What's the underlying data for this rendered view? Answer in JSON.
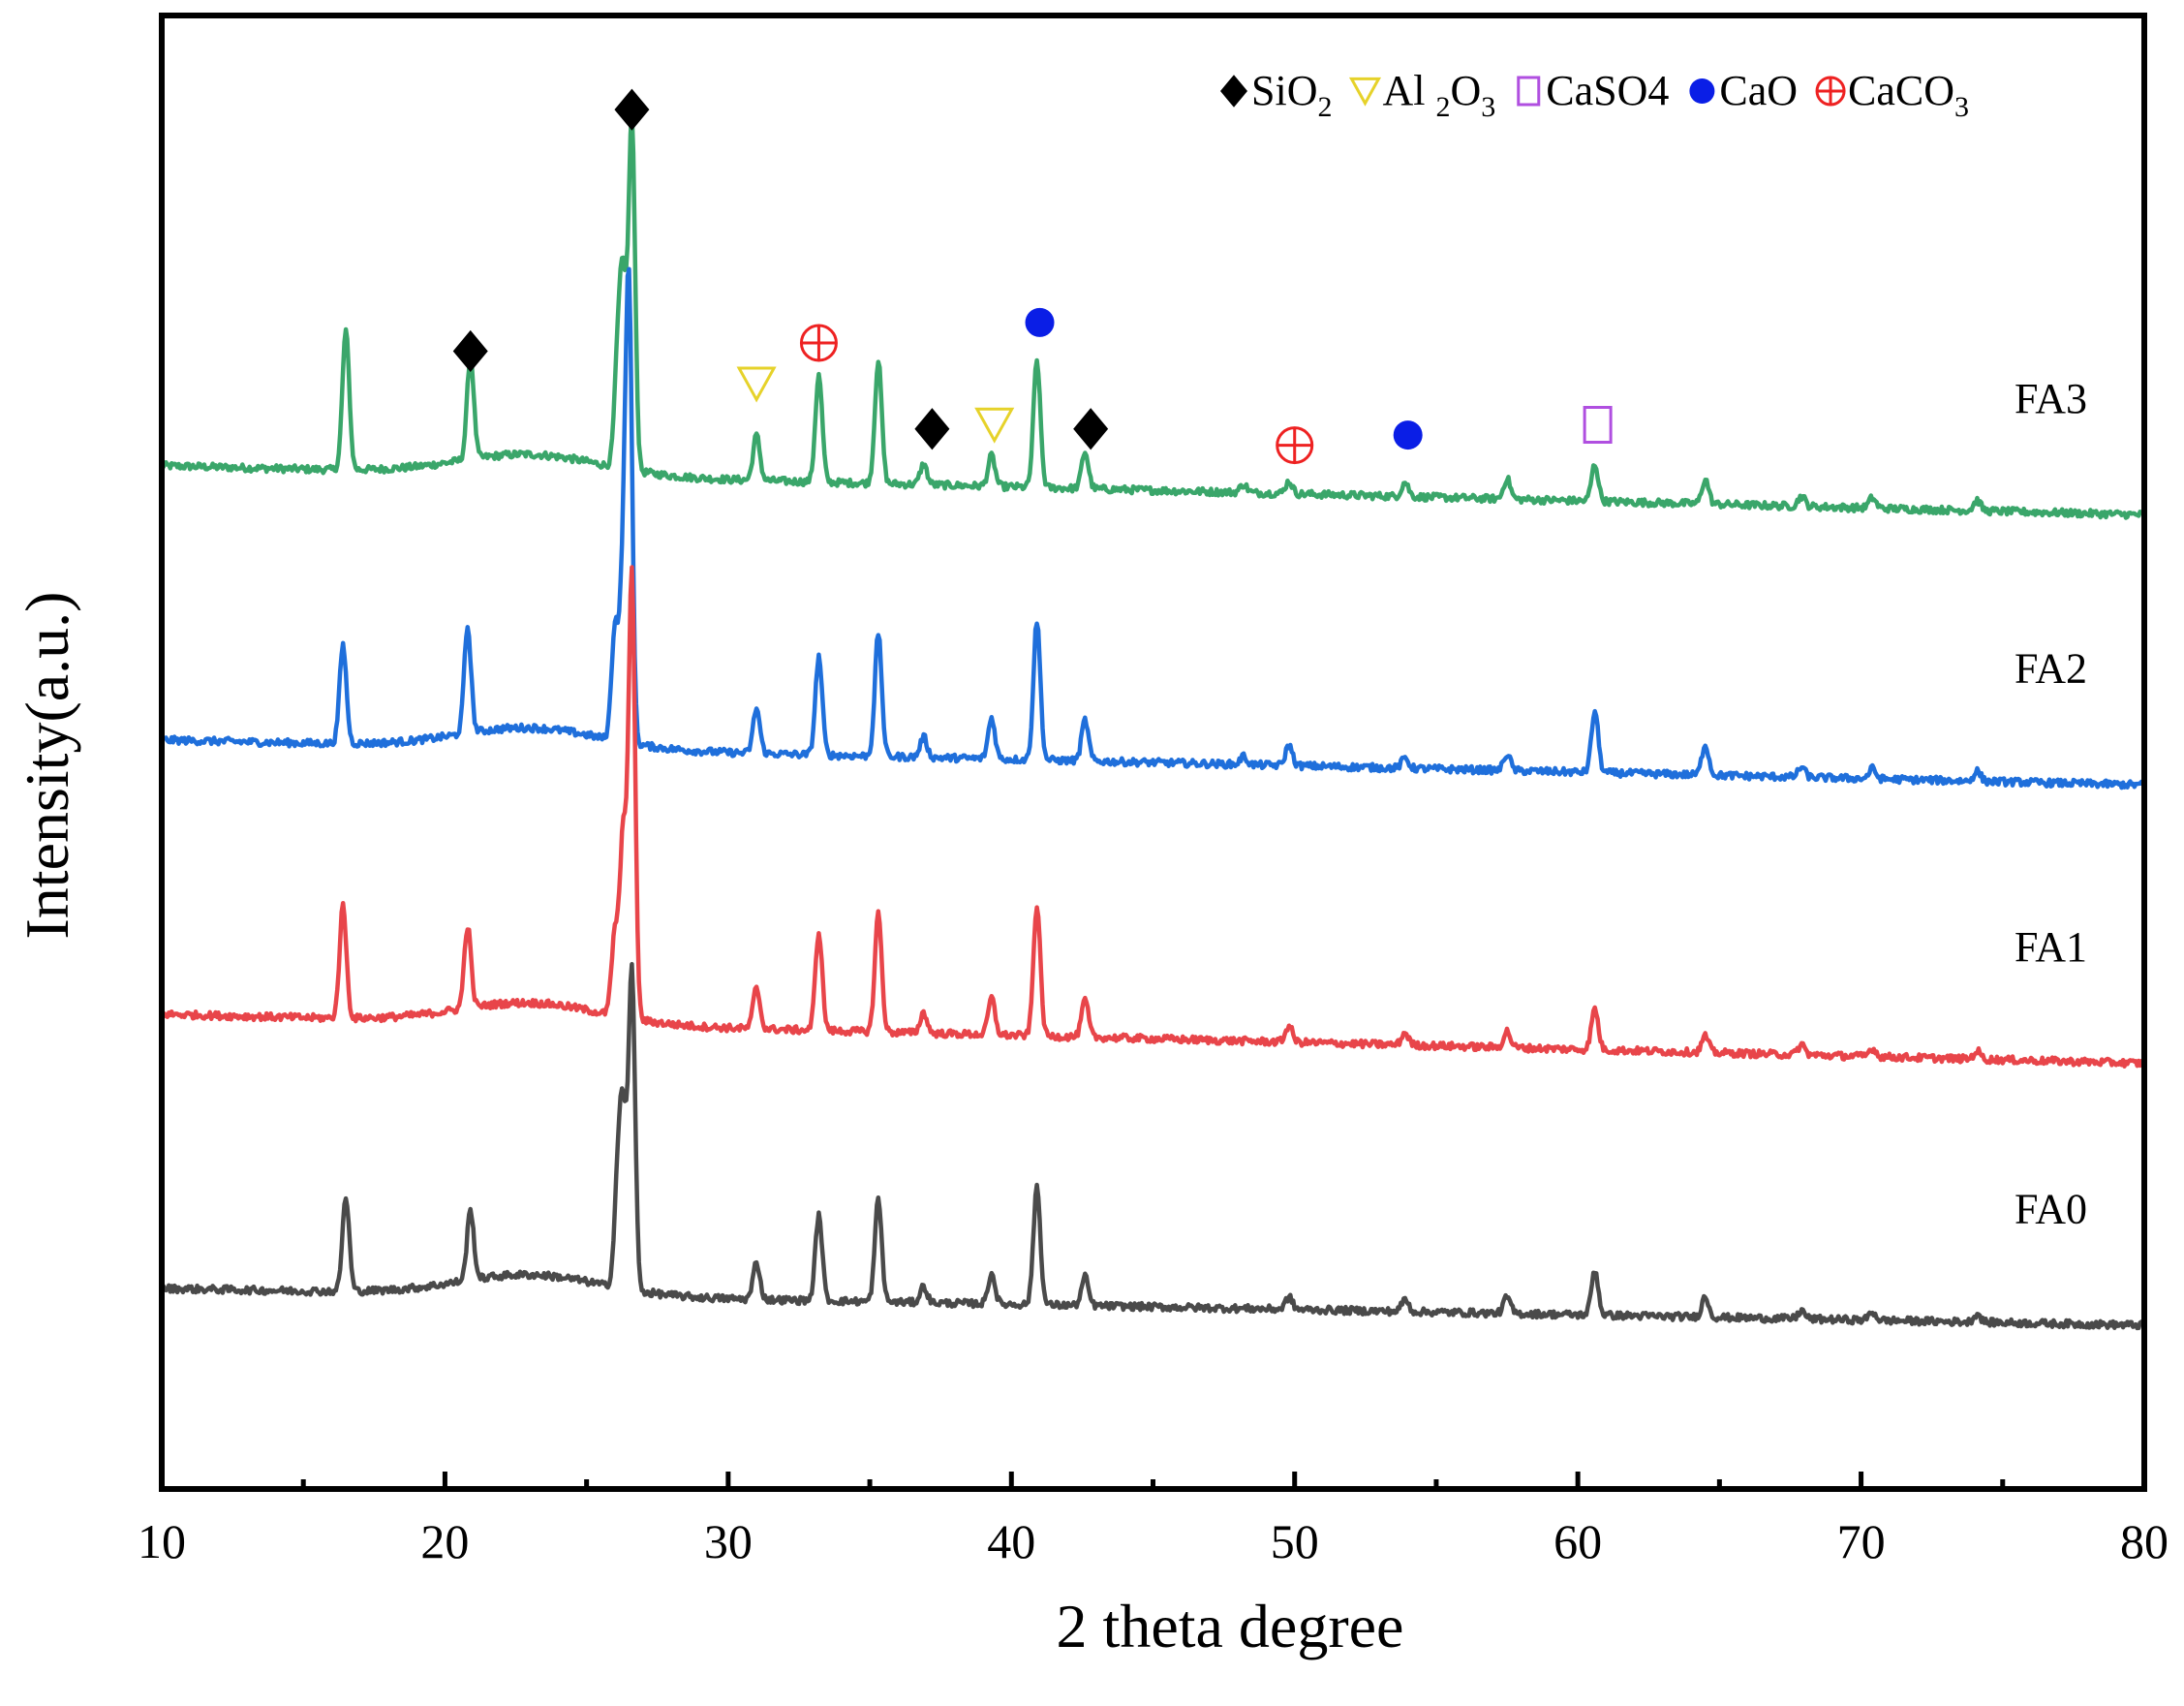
{
  "chart_data": {
    "type": "line",
    "title": "",
    "xlabel": "2 theta degree",
    "ylabel": "Intensity(a.u.)",
    "xlim": [
      10,
      80
    ],
    "x_ticks": [
      10,
      20,
      30,
      40,
      50,
      60,
      70,
      80
    ],
    "y_ticks": [],
    "grid": false,
    "legend_position": "top-right",
    "legend": [
      {
        "symbol": "◆",
        "text": "SiO",
        "sub": "2",
        "color": "#000000"
      },
      {
        "symbol": "▽",
        "text": "Al ",
        "sub": "2",
        "text2": "O",
        "sub2": "3",
        "color": "#e6d22a"
      },
      {
        "symbol": "□",
        "text": "CaSO4",
        "color": "#b04fe0"
      },
      {
        "symbol": "●",
        "text": "CaO",
        "color": "#0a1ee6"
      },
      {
        "symbol": "⊕",
        "text": "CaCO",
        "sub": "3",
        "color": "#ee2222"
      }
    ],
    "series": [
      {
        "name": "FA3",
        "color": "#3aa66a",
        "baseline_start": 5.0,
        "baseline_end": 4.76,
        "peaks": [
          [
            16.5,
            0.68
          ],
          [
            20.9,
            0.5
          ],
          [
            26.1,
            0.5
          ],
          [
            26.3,
            0.85
          ],
          [
            26.6,
            1.7
          ],
          [
            31.0,
            0.22
          ],
          [
            33.2,
            0.52
          ],
          [
            35.3,
            0.6
          ],
          [
            36.9,
            0.1
          ],
          [
            39.3,
            0.15
          ],
          [
            40.9,
            0.62
          ],
          [
            42.6,
            0.18
          ],
          [
            48.2,
            0.04
          ],
          [
            49.8,
            0.06
          ],
          [
            53.9,
            0.07
          ],
          [
            57.5,
            0.1
          ],
          [
            60.6,
            0.18
          ],
          [
            64.5,
            0.12
          ],
          [
            67.9,
            0.05
          ],
          [
            70.4,
            0.05
          ],
          [
            74.1,
            0.05
          ]
        ]
      },
      {
        "name": "FA2",
        "color": "#1f6fdb",
        "baseline_start": 3.66,
        "baseline_end": 3.44,
        "peaks": [
          [
            16.4,
            0.48
          ],
          [
            20.8,
            0.52
          ],
          [
            26.0,
            0.55
          ],
          [
            26.3,
            0.8
          ],
          [
            26.5,
            2.1
          ],
          [
            31.0,
            0.22
          ],
          [
            33.2,
            0.48
          ],
          [
            35.3,
            0.6
          ],
          [
            36.9,
            0.1
          ],
          [
            39.3,
            0.2
          ],
          [
            40.9,
            0.68
          ],
          [
            42.6,
            0.2
          ],
          [
            48.2,
            0.04
          ],
          [
            49.8,
            0.1
          ],
          [
            53.9,
            0.05
          ],
          [
            57.5,
            0.08
          ],
          [
            60.6,
            0.3
          ],
          [
            64.5,
            0.15
          ],
          [
            67.9,
            0.05
          ],
          [
            70.4,
            0.05
          ],
          [
            74.1,
            0.05
          ]
        ]
      },
      {
        "name": "FA1",
        "color": "#e8454a",
        "baseline_start": 2.32,
        "baseline_end": 2.08,
        "peaks": [
          [
            16.4,
            0.55
          ],
          [
            20.8,
            0.4
          ],
          [
            26.0,
            0.4
          ],
          [
            26.3,
            0.9
          ],
          [
            26.6,
            2.15
          ],
          [
            31.0,
            0.2
          ],
          [
            33.2,
            0.48
          ],
          [
            35.3,
            0.58
          ],
          [
            36.9,
            0.1
          ],
          [
            39.3,
            0.18
          ],
          [
            40.9,
            0.64
          ],
          [
            42.6,
            0.18
          ],
          [
            49.8,
            0.08
          ],
          [
            53.9,
            0.06
          ],
          [
            57.5,
            0.08
          ],
          [
            60.6,
            0.2
          ],
          [
            64.5,
            0.08
          ],
          [
            67.9,
            0.05
          ],
          [
            70.4,
            0.04
          ],
          [
            74.1,
            0.04
          ]
        ]
      },
      {
        "name": "FA0",
        "color": "#4a4a4a",
        "baseline_start": 0.98,
        "baseline_end": 0.8,
        "peaks": [
          [
            16.5,
            0.46
          ],
          [
            20.9,
            0.34
          ],
          [
            26.1,
            0.5
          ],
          [
            26.3,
            0.8
          ],
          [
            26.6,
            1.55
          ],
          [
            31.0,
            0.18
          ],
          [
            33.2,
            0.42
          ],
          [
            35.3,
            0.5
          ],
          [
            36.9,
            0.08
          ],
          [
            39.3,
            0.15
          ],
          [
            40.9,
            0.58
          ],
          [
            42.6,
            0.14
          ],
          [
            49.8,
            0.06
          ],
          [
            53.9,
            0.06
          ],
          [
            57.5,
            0.08
          ],
          [
            60.6,
            0.22
          ],
          [
            64.5,
            0.1
          ],
          [
            67.9,
            0.04
          ],
          [
            70.4,
            0.04
          ],
          [
            74.1,
            0.04
          ]
        ]
      }
    ],
    "phase_markers": [
      {
        "symbol": "◆",
        "phase": "SiO2",
        "x": 20.9,
        "y": 5.56,
        "color": "#000000"
      },
      {
        "symbol": "◆",
        "phase": "SiO2",
        "x": 26.6,
        "y": 6.74,
        "color": "#000000"
      },
      {
        "symbol": "▽",
        "phase": "Al2O3",
        "x": 31.0,
        "y": 5.4,
        "color": "#e6d22a"
      },
      {
        "symbol": "⊕",
        "phase": "CaCO3",
        "x": 33.2,
        "y": 5.6,
        "color": "#ee2222"
      },
      {
        "symbol": "◆",
        "phase": "SiO2",
        "x": 37.2,
        "y": 5.18,
        "color": "#000000"
      },
      {
        "symbol": "▽",
        "phase": "Al2O3",
        "x": 39.4,
        "y": 5.2,
        "color": "#e6d22a"
      },
      {
        "symbol": "●",
        "phase": "CaO",
        "x": 41.0,
        "y": 5.7,
        "color": "#0a1ee6"
      },
      {
        "symbol": "◆",
        "phase": "SiO2",
        "x": 42.8,
        "y": 5.18,
        "color": "#000000"
      },
      {
        "symbol": "⊕",
        "phase": "CaCO3",
        "x": 50.0,
        "y": 5.1,
        "color": "#ee2222"
      },
      {
        "symbol": "●",
        "phase": "CaO",
        "x": 54.0,
        "y": 5.15,
        "color": "#0a1ee6"
      },
      {
        "symbol": "□",
        "phase": "CaSO4",
        "x": 60.7,
        "y": 5.2,
        "color": "#b04fe0"
      }
    ]
  }
}
